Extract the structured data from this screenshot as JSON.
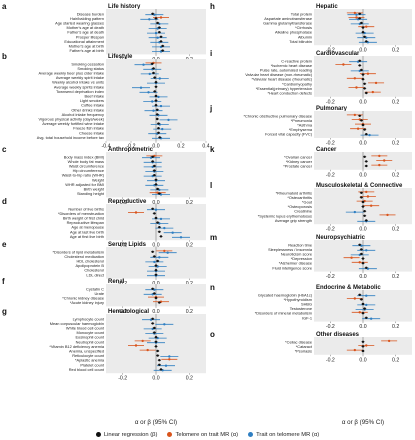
{
  "chart_data": {
    "type": "scatter",
    "description_series": [
      "Linear regression (β)",
      "Telomere on trait MR (α)",
      "Trait on telomere MR (α)"
    ],
    "x_axis_label": "α or β (95% CI)",
    "colors": {
      "linear": "#111111",
      "telomere_on_trait": "#d9541c",
      "trait_on_telomere": "#2f7fc2",
      "panel_bg": "#ebebeb",
      "zero_line": "#8a8a8a"
    },
    "panels": [
      {
        "letter": "a",
        "title": "Life history",
        "xlim": [
          -0.3,
          0.3
        ],
        "ticks": [
          -0.2,
          0.0,
          0.2
        ],
        "traits": [
          {
            "name": "Disease burden",
            "lr": -0.02,
            "tt": null,
            "tr": -0.01
          },
          {
            "name": "Hair/balding pattern",
            "lr": 0.0,
            "tt": 0.03,
            "tr": -0.04
          },
          {
            "name": "Age started wearing glasses",
            "lr": 0.01,
            "tt": null,
            "tr": 0.02
          },
          {
            "name": "Mother's age at death",
            "lr": 0.02,
            "tt": null,
            "tr": 0.01
          },
          {
            "name": "Father's age at death",
            "lr": 0.02,
            "tt": null,
            "tr": 0.0
          },
          {
            "name": "Prosper lifespan",
            "lr": 0.03,
            "tt": null,
            "tr": 0.01
          },
          {
            "name": "Educational attainment",
            "lr": 0.03,
            "tt": null,
            "tr": 0.02
          },
          {
            "name": "Mother's age at birth",
            "lr": 0.04,
            "tt": null,
            "tr": 0.03
          },
          {
            "name": "Father's age at birth",
            "lr": 0.04,
            "tt": null,
            "tr": 0.03
          }
        ]
      },
      {
        "letter": "b",
        "title": "Lifestyle",
        "xlim": [
          -0.4,
          0.4
        ],
        "ticks": [
          -0.4,
          -0.2,
          0.0,
          0.2,
          0.4
        ],
        "traits": [
          {
            "name": "Smoking cessation",
            "lr": -0.03,
            "tt": -0.02,
            "tr": -0.1
          },
          {
            "name": "Smoking status",
            "lr": -0.02,
            "tt": null,
            "tr": -0.03
          },
          {
            "name": "Average weekly beer plus cider intake",
            "lr": -0.02,
            "tt": null,
            "tr": -0.05
          },
          {
            "name": "Average weekly spirit intake",
            "lr": -0.01,
            "tt": null,
            "tr": 0.03
          },
          {
            "name": "Weekly alcohol intake vs units",
            "lr": 0.0,
            "tt": null,
            "tr": 0.0
          },
          {
            "name": "Average weekly spirits intake",
            "lr": 0.0,
            "tt": null,
            "tr": -0.12
          },
          {
            "name": "Townsend deprivation index",
            "lr": -0.01,
            "tt": null,
            "tr": -0.06
          },
          {
            "name": "Beef intake",
            "lr": 0.0,
            "tt": null,
            "tr": 0.02
          },
          {
            "name": "Light smokers",
            "lr": 0.0,
            "tt": null,
            "tr": -0.03
          },
          {
            "name": "Coffee intake",
            "lr": 0.0,
            "tt": null,
            "tr": 0.04
          },
          {
            "name": "Other drinks intake",
            "lr": 0.01,
            "tt": null,
            "tr": -0.02
          },
          {
            "name": "Alcohol intake frequency",
            "lr": 0.01,
            "tt": null,
            "tr": 0.02
          },
          {
            "name": "Vigorous physical activity (days/week)",
            "lr": 0.01,
            "tt": null,
            "tr": 0.1
          },
          {
            "name": "Average weekly fortified wine intake",
            "lr": 0.02,
            "tt": null,
            "tr": 0.03
          },
          {
            "name": "Freeze fish intake",
            "lr": 0.02,
            "tt": null,
            "tr": 0.05
          },
          {
            "name": "Cheese intake",
            "lr": 0.02,
            "tt": null,
            "tr": 0.01
          },
          {
            "name": "Avg. total household income before tax",
            "lr": 0.03,
            "tt": null,
            "tr": 0.04
          }
        ]
      },
      {
        "letter": "c",
        "title": "Anthropometric",
        "xlim": [
          -0.3,
          0.3
        ],
        "ticks": [
          -0.2,
          0.0,
          0.2
        ],
        "traits": [
          {
            "name": "Body mass index (BMI)",
            "lr": -0.02,
            "tt": -0.01,
            "tr": -0.03
          },
          {
            "name": "Whole body fat mass",
            "lr": -0.02,
            "tt": null,
            "tr": -0.02
          },
          {
            "name": "Waist circumference",
            "lr": -0.01,
            "tt": null,
            "tr": -0.02
          },
          {
            "name": "Hip circumference",
            "lr": -0.01,
            "tt": null,
            "tr": -0.01
          },
          {
            "name": "Waist-to-hip ratio (WHR)",
            "lr": -0.01,
            "tt": null,
            "tr": -0.02
          },
          {
            "name": "Weight",
            "lr": 0.0,
            "tt": null,
            "tr": 0.0
          },
          {
            "name": "WHR adjusted for BMI",
            "lr": 0.0,
            "tt": null,
            "tr": -0.01
          },
          {
            "name": "Birth weight",
            "lr": 0.01,
            "tt": null,
            "tr": 0.02
          },
          {
            "name": "Standing height",
            "lr": 0.02,
            "tt": 0.01,
            "tr": 0.03
          }
        ]
      },
      {
        "letter": "d",
        "title": "Reproductive",
        "xlim": [
          -0.3,
          0.3
        ],
        "ticks": [
          -0.2,
          0.0,
          0.2
        ],
        "traits": [
          {
            "name": "Number of live births",
            "lr": -0.02,
            "tt": null,
            "tr": 0.0
          },
          {
            "name": "*Disorders of menstruation",
            "lr": -0.01,
            "tt": -0.12,
            "tr": null
          },
          {
            "name": "Birth weight of first child",
            "lr": 0.0,
            "tt": null,
            "tr": 0.03
          },
          {
            "name": "Reproductive lifespan",
            "lr": 0.01,
            "tt": null,
            "tr": 0.02
          },
          {
            "name": "Age at menopause",
            "lr": 0.02,
            "tt": null,
            "tr": 0.05
          },
          {
            "name": "Age at last live birth",
            "lr": 0.02,
            "tt": null,
            "tr": 0.1
          },
          {
            "name": "Age at first live birth",
            "lr": 0.03,
            "tt": null,
            "tr": 0.15
          }
        ]
      },
      {
        "letter": "e",
        "title": "Serum Lipids",
        "xlim": [
          -0.3,
          0.3
        ],
        "ticks": [
          -0.2,
          0.0,
          0.2
        ],
        "traits": [
          {
            "name": "*Disorders of lipid metabolism",
            "lr": -0.02,
            "tt": 0.05,
            "tr": 0.07
          },
          {
            "name": "Cholesterol medication",
            "lr": -0.01,
            "tt": null,
            "tr": 0.02
          },
          {
            "name": "HDL cholesterol",
            "lr": 0.01,
            "tt": null,
            "tr": -0.01
          },
          {
            "name": "Apolipoprotein B",
            "lr": 0.0,
            "tt": null,
            "tr": 0.01
          },
          {
            "name": "Cholesterol",
            "lr": 0.0,
            "tt": null,
            "tr": 0.0
          },
          {
            "name": "LDL direct",
            "lr": 0.0,
            "tt": null,
            "tr": 0.0
          }
        ]
      },
      {
        "letter": "f",
        "title": "Renal",
        "xlim": [
          -0.3,
          0.3
        ],
        "ticks": [
          -0.2,
          0.0,
          0.2
        ],
        "traits": [
          {
            "name": "Cystatin C",
            "lr": -0.02,
            "tt": null,
            "tr": -0.01
          },
          {
            "name": "Urate",
            "lr": -0.01,
            "tt": null,
            "tr": -0.02
          },
          {
            "name": "*Chronic kidney disease",
            "lr": 0.0,
            "tt": 0.0,
            "tr": null
          },
          {
            "name": "*Acute kidney injury",
            "lr": 0.02,
            "tt": 0.03,
            "tr": null
          }
        ]
      },
      {
        "letter": "g",
        "title": "Hematological",
        "xlim": [
          -0.3,
          0.3
        ],
        "ticks": [
          -0.2,
          0.0,
          0.2
        ],
        "traits": [
          {
            "name": "Lymphocyte count",
            "lr": -0.02,
            "tt": null,
            "tr": -0.03
          },
          {
            "name": "Mean corpuscular haemoglobin",
            "lr": -0.02,
            "tt": null,
            "tr": 0.05
          },
          {
            "name": "White blood cell count",
            "lr": -0.01,
            "tt": null,
            "tr": -0.02
          },
          {
            "name": "Monocyte count",
            "lr": -0.01,
            "tt": null,
            "tr": -0.01
          },
          {
            "name": "Eosinophil count",
            "lr": 0.0,
            "tt": null,
            "tr": 0.01
          },
          {
            "name": "Neutrophil count",
            "lr": 0.0,
            "tt": -0.08,
            "tr": 0.0
          },
          {
            "name": "*Vitamin B12 deficiency anemia",
            "lr": 0.0,
            "tt": -0.12,
            "tr": null
          },
          {
            "name": "Anemia, unspecified",
            "lr": 0.01,
            "tt": -0.05,
            "tr": null
          },
          {
            "name": "Reticulocyte count",
            "lr": 0.01,
            "tt": null,
            "tr": 0.08
          },
          {
            "name": "*Aplastic anemia",
            "lr": 0.02,
            "tt": 0.08,
            "tr": null
          },
          {
            "name": "Platelet count",
            "lr": 0.02,
            "tt": null,
            "tr": 0.06
          },
          {
            "name": "Red blood cell count",
            "lr": 0.03,
            "tt": null,
            "tr": 0.04
          }
        ]
      },
      {
        "letter": "h",
        "title": "Hepatic",
        "xlim": [
          -0.3,
          0.3
        ],
        "ticks": [
          -0.2,
          0.0,
          0.2
        ],
        "traits": [
          {
            "name": "Total protein",
            "lr": -0.02,
            "tt": -0.05,
            "tr": -0.04
          },
          {
            "name": "Aspartate aminotransferase",
            "lr": -0.02,
            "tt": -0.04,
            "tr": -0.03
          },
          {
            "name": "Gamma glutamyltransferase",
            "lr": -0.01,
            "tt": null,
            "tr": -0.02
          },
          {
            "name": "*Cirrhosis",
            "lr": 0.0,
            "tt": 0.02,
            "tr": null
          },
          {
            "name": "Alkaline phosphatase",
            "lr": 0.0,
            "tt": null,
            "tr": 0.01
          },
          {
            "name": "Albumin",
            "lr": 0.01,
            "tt": null,
            "tr": 0.02
          },
          {
            "name": "Total bilirubin",
            "lr": 0.02,
            "tt": null,
            "tr": 0.03
          }
        ]
      },
      {
        "letter": "i",
        "title": "Cardiovascular",
        "xlim": [
          -0.3,
          0.3
        ],
        "ticks": [
          -0.2,
          0.0,
          0.2
        ],
        "traits": [
          {
            "name": "C-reactive protein",
            "lr": -0.02,
            "tt": null,
            "tr": -0.03
          },
          {
            "name": "*Ischemic heart disease",
            "lr": -0.02,
            "tt": -0.12,
            "tr": null
          },
          {
            "name": "Pulse rate, automated reading",
            "lr": -0.01,
            "tt": null,
            "tr": -0.02
          },
          {
            "name": "Valvular heart disease (non-rheumatic)",
            "lr": 0.0,
            "tt": 0.03,
            "tr": null
          },
          {
            "name": "*Valvular heart disease (rheumatic)",
            "lr": 0.0,
            "tt": -0.05,
            "tr": null
          },
          {
            "name": "*Cardiomyopathy",
            "lr": 0.01,
            "tt": 0.08,
            "tr": null
          },
          {
            "name": "*Essential(primary) hypertension",
            "lr": 0.01,
            "tt": -0.04,
            "tr": null
          },
          {
            "name": "*Heart conduction defects",
            "lr": 0.02,
            "tt": 0.06,
            "tr": null
          }
        ]
      },
      {
        "letter": "j",
        "title": "Pulmonary",
        "xlim": [
          -0.3,
          0.3
        ],
        "ticks": [
          -0.2,
          0.0,
          0.2
        ],
        "traits": [
          {
            "name": "*Chronic obstructive pulmonary disease",
            "lr": -0.02,
            "tt": -0.05,
            "tr": null
          },
          {
            "name": "*Pneumonia",
            "lr": -0.01,
            "tt": -0.02,
            "tr": null
          },
          {
            "name": "*Asthma",
            "lr": 0.0,
            "tt": 0.0,
            "tr": null
          },
          {
            "name": "*Emphysema",
            "lr": 0.01,
            "tt": -0.03,
            "tr": null
          },
          {
            "name": "Forced vital capacity (FVC)",
            "lr": 0.02,
            "tt": null,
            "tr": 0.04
          }
        ]
      },
      {
        "letter": "k",
        "title": "Cancer",
        "xlim": [
          -0.3,
          0.3
        ],
        "ticks": [
          -0.2,
          0.0,
          0.2
        ],
        "traits": [
          {
            "name": "*Ovarian cancer",
            "lr": 0.01,
            "tt": 0.1,
            "tr": null
          },
          {
            "name": "*Kidney cancer",
            "lr": 0.02,
            "tt": 0.13,
            "tr": null
          },
          {
            "name": "*Prostate cancer",
            "lr": 0.02,
            "tt": 0.1,
            "tr": null
          }
        ]
      },
      {
        "letter": "l",
        "title": "Musculoskeletal & Connective",
        "xlim": [
          -0.3,
          0.3
        ],
        "ticks": [
          -0.2,
          0.0,
          0.2
        ],
        "traits": [
          {
            "name": "*Rheumatoid arthritis",
            "lr": -0.01,
            "tt": 0.02,
            "tr": null
          },
          {
            "name": "*Osteoarthritis",
            "lr": -0.01,
            "tt": 0.03,
            "tr": null
          },
          {
            "name": "*Gout",
            "lr": 0.0,
            "tt": 0.01,
            "tr": null
          },
          {
            "name": "*Osteoporosis",
            "lr": 0.0,
            "tt": 0.05,
            "tr": null
          },
          {
            "name": "Creatinine",
            "lr": 0.01,
            "tt": null,
            "tr": -0.05
          },
          {
            "name": "*Systemic lupus erythematosus",
            "lr": 0.01,
            "tt": 0.15,
            "tr": null
          },
          {
            "name": "Average grip strength",
            "lr": 0.02,
            "tt": null,
            "tr": 0.02
          }
        ]
      },
      {
        "letter": "m",
        "title": "Neuropsychiatric",
        "xlim": [
          -0.3,
          0.3
        ],
        "ticks": [
          -0.2,
          0.0,
          0.2
        ],
        "traits": [
          {
            "name": "Reaction time",
            "lr": -0.02,
            "tt": null,
            "tr": -0.01
          },
          {
            "name": "Sleeplessness / insomnia",
            "lr": -0.01,
            "tt": null,
            "tr": 0.02
          },
          {
            "name": "Neuroticism score",
            "lr": -0.01,
            "tt": null,
            "tr": -0.02
          },
          {
            "name": "*Depression",
            "lr": 0.0,
            "tt": -0.07,
            "tr": null
          },
          {
            "name": "*Alzheimer disease",
            "lr": 0.0,
            "tt": -0.02,
            "tr": null
          },
          {
            "name": "Fluid intelligence score",
            "lr": 0.02,
            "tt": null,
            "tr": 0.03
          }
        ]
      },
      {
        "letter": "n",
        "title": "Endocrine & Metabolic",
        "xlim": [
          -0.3,
          0.3
        ],
        "ticks": [
          -0.2,
          0.0,
          0.2
        ],
        "traits": [
          {
            "name": "Glycated haemoglobin (HbA1c)",
            "lr": -0.02,
            "tt": null,
            "tr": 0.02
          },
          {
            "name": "*Hypothyroidism",
            "lr": -0.01,
            "tt": -0.05,
            "tr": null
          },
          {
            "name": "SHBG",
            "lr": 0.0,
            "tt": null,
            "tr": 0.02
          },
          {
            "name": "Testosterone",
            "lr": 0.01,
            "tt": null,
            "tr": 0.01
          },
          {
            "name": "*Disorders of mineral metabolism",
            "lr": 0.0,
            "tt": -0.02,
            "tr": null
          },
          {
            "name": "IGF-1",
            "lr": 0.02,
            "tt": null,
            "tr": 0.05
          }
        ]
      },
      {
        "letter": "o",
        "title": "Other diseases",
        "xlim": [
          -0.3,
          0.3
        ],
        "ticks": [
          -0.2,
          0.0,
          0.2
        ],
        "traits": [
          {
            "name": "*Celiac disease",
            "lr": 0.0,
            "tt": 0.16,
            "tr": null
          },
          {
            "name": "*Cataract",
            "lr": 0.0,
            "tt": 0.02,
            "tr": null
          },
          {
            "name": "*Psoriasis",
            "lr": 0.0,
            "tt": -0.05,
            "tr": null
          }
        ]
      }
    ]
  }
}
